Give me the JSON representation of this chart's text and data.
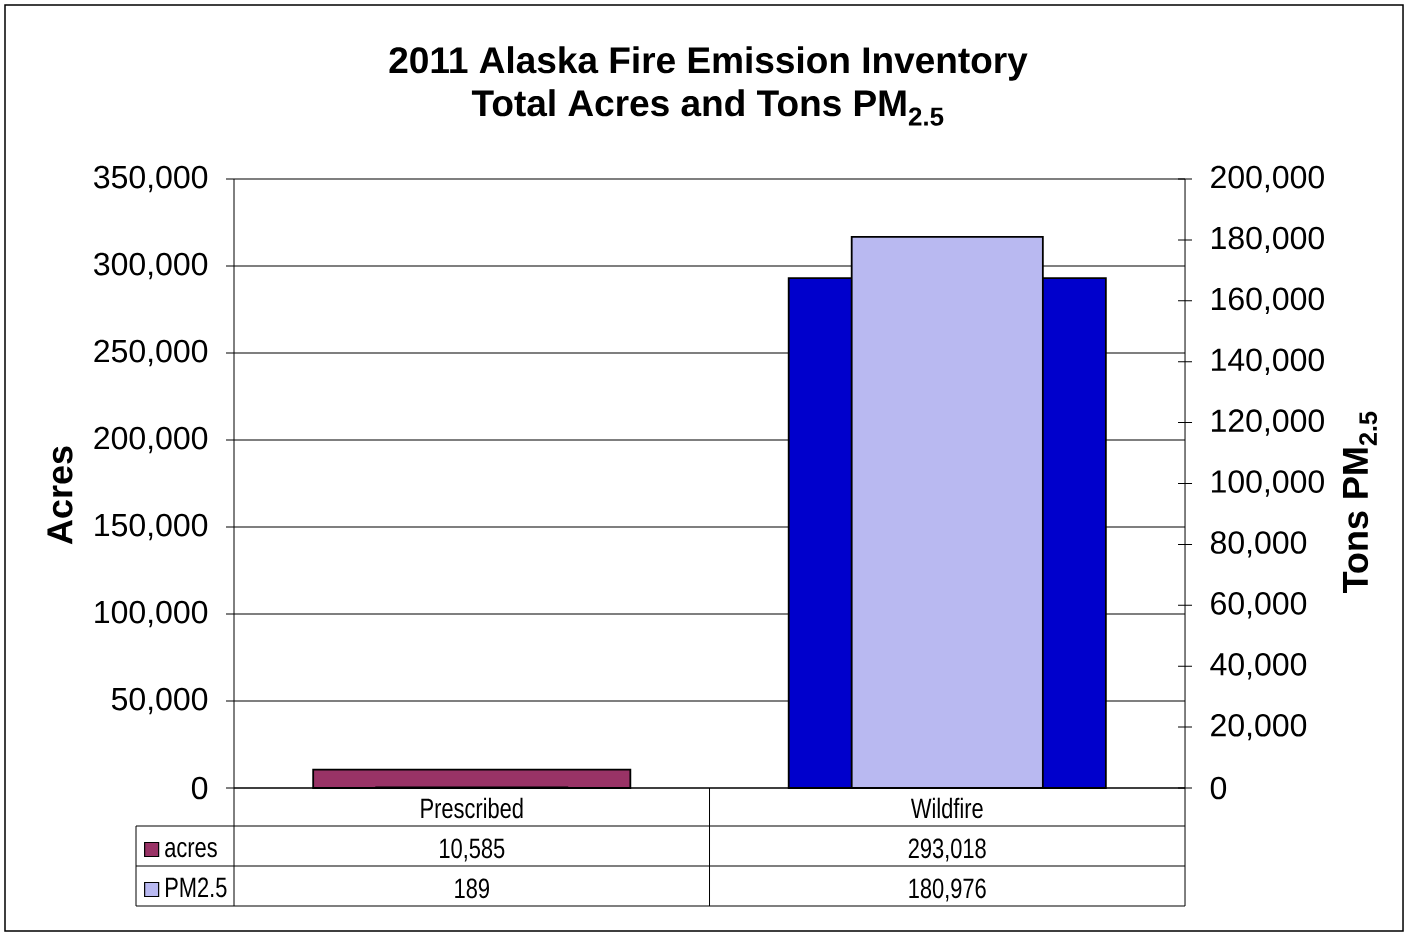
{
  "chart_data": {
    "type": "bar",
    "title": "2011 Alaska Fire Emission Inventory",
    "subtitle": "Total Acres and Tons PM$_{2.5}$",
    "ylabel": "Acres",
    "y2label": "Tons PM$_{2.5}$",
    "categories": [
      "Prescribed",
      "Wildfire"
    ],
    "series": [
      {
        "name": "acres",
        "color": "#993366",
        "colors": [
          "#993366",
          "#0000cc"
        ],
        "values": [
          10585,
          293018
        ],
        "value_labels": [
          "10,585",
          "293,018"
        ]
      },
      {
        "name": "PM2.5",
        "color": "#b9b9f1",
        "axis": "y2",
        "values": [
          189,
          180976
        ],
        "value_labels": [
          "189",
          "180,976"
        ]
      }
    ],
    "ylim": [
      0,
      350000
    ],
    "yticks": [
      0,
      {
        "value": 50000,
        "label": "50,000"
      },
      {
        "value": 100000,
        "label": "100,000"
      },
      {
        "value": 150000,
        "label": "150,000"
      },
      {
        "value": 200000,
        "label": "200,000"
      },
      {
        "value": 250000,
        "label": "250,000"
      },
      {
        "value": 300000,
        "label": "300,000"
      },
      {
        "value": 350000,
        "label": "350,000"
      }
    ],
    "y2lim": [
      0,
      200000
    ],
    "y2ticks": [
      0,
      {
        "value": 20000,
        "label": "20,000"
      },
      {
        "value": 40000,
        "label": "40,000"
      },
      {
        "value": 60000,
        "label": "60,000"
      },
      {
        "value": 80000,
        "label": "80,000"
      },
      {
        "value": 100000,
        "label": "100,000"
      },
      {
        "value": 120000,
        "label": "120,000"
      },
      {
        "value": 140000,
        "label": "140,000"
      },
      {
        "value": 160000,
        "label": "160,000"
      },
      {
        "value": 180000,
        "label": "180,000"
      },
      {
        "value": 200000,
        "label": "200,000"
      }
    ],
    "grid": "y",
    "legend": "bottom"
  }
}
